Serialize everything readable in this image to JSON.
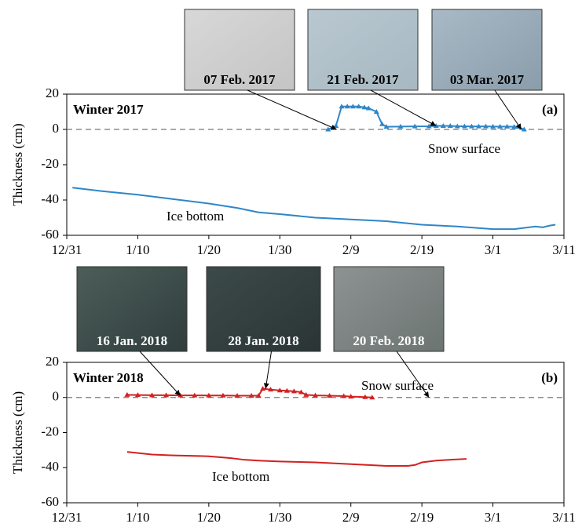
{
  "chart_data": [
    {
      "type": "line",
      "title": "Winter 2017",
      "panel_label": "(a)",
      "ylabel": "Thickness (cm)",
      "xlim": [
        0,
        70
      ],
      "xticks": [
        {
          "value": 0,
          "label": "12/31"
        },
        {
          "value": 10,
          "label": "1/10"
        },
        {
          "value": 20,
          "label": "1/20"
        },
        {
          "value": 30,
          "label": "1/30"
        },
        {
          "value": 40,
          "label": "2/9"
        },
        {
          "value": 50,
          "label": "2/19"
        },
        {
          "value": 60,
          "label": "3/1"
        },
        {
          "value": 70,
          "label": "3/11"
        }
      ],
      "ylim": [
        -60,
        20
      ],
      "yticks": [
        -60,
        -40,
        -20,
        0,
        20
      ],
      "hline": 0,
      "photos": [
        {
          "label": "07 Feb. 2017",
          "x": 38,
          "y": 0
        },
        {
          "label": "21 Feb. 2017",
          "x": 52,
          "y": 2
        },
        {
          "label": "03 Mar. 2017",
          "x": 64,
          "y": 0
        }
      ],
      "series": [
        {
          "name": "Snow surface",
          "color": "#2e86c8",
          "marker": "triangle",
          "x": [
            36.8,
            37.9,
            38.7,
            39.5,
            40.3,
            41.1,
            41.9,
            42.5,
            43.6,
            44.4,
            45,
            47,
            49,
            51,
            52,
            53,
            54,
            55,
            56,
            57,
            58,
            59,
            60,
            61,
            62,
            63,
            63.5,
            64.4
          ],
          "values": [
            0,
            2,
            13,
            13,
            13,
            13,
            12.5,
            12,
            10,
            3,
            1.5,
            1.6,
            1.7,
            1.8,
            2,
            2,
            2,
            1.8,
            1.8,
            1.7,
            1.7,
            1.7,
            1.6,
            1.6,
            1.6,
            1.5,
            1.5,
            0
          ]
        },
        {
          "name": "Ice bottom",
          "color": "#2e86c8",
          "marker": "none",
          "x": [
            0.8,
            5,
            10,
            15,
            20,
            24,
            27,
            30,
            35,
            40,
            45,
            50,
            55,
            60,
            63,
            65,
            66,
            67,
            68,
            68.8
          ],
          "values": [
            -33,
            -35,
            -37,
            -39.5,
            -42,
            -44.5,
            -47,
            -48,
            -50,
            -51,
            -52,
            -54,
            -55,
            -56.5,
            -56.5,
            -55.5,
            -55,
            -55.5,
            -54.5,
            -54
          ]
        }
      ]
    },
    {
      "type": "line",
      "title": "Winter 2018",
      "panel_label": "(b)",
      "ylabel": "Thickness (cm)",
      "xlim": [
        0,
        70
      ],
      "xticks": [
        {
          "value": 0,
          "label": "12/31"
        },
        {
          "value": 10,
          "label": "1/10"
        },
        {
          "value": 20,
          "label": "1/20"
        },
        {
          "value": 30,
          "label": "1/30"
        },
        {
          "value": 40,
          "label": "2/9"
        },
        {
          "value": 50,
          "label": "2/19"
        },
        {
          "value": 60,
          "label": "3/1"
        },
        {
          "value": 70,
          "label": "3/11"
        }
      ],
      "ylim": [
        -60,
        20
      ],
      "yticks": [
        -60,
        -40,
        -20,
        0,
        20
      ],
      "hline": 0,
      "photos": [
        {
          "label": "16 Jan. 2018",
          "x": 16,
          "y": 1
        },
        {
          "label": "28 Jan. 2018",
          "x": 28,
          "y": 5
        },
        {
          "label": "20 Feb. 2018",
          "x": 51,
          "y": 0
        }
      ],
      "series": [
        {
          "name": "Snow surface",
          "color": "#d42020",
          "marker": "triangle",
          "x": [
            8.5,
            10,
            12,
            14,
            16,
            18,
            20,
            22,
            24,
            26,
            27,
            27.6,
            28.7,
            30,
            31,
            32,
            33,
            33.7,
            35,
            37,
            39,
            40,
            42,
            43
          ],
          "values": [
            1.5,
            1.4,
            1.3,
            1.3,
            1.2,
            1.2,
            1.1,
            1.1,
            1,
            1,
            1,
            5,
            4.5,
            4,
            3.8,
            3.5,
            3,
            1.5,
            1.2,
            1,
            0.8,
            0.5,
            0.2,
            0
          ]
        },
        {
          "name": "Ice bottom",
          "color": "#d42020",
          "marker": "none",
          "x": [
            8.5,
            12,
            15,
            20,
            23,
            25,
            27,
            30,
            35,
            40,
            45,
            48,
            49,
            50,
            52,
            54,
            56.3
          ],
          "values": [
            -31,
            -32.5,
            -33,
            -33.5,
            -34.5,
            -35.5,
            -36,
            -36.5,
            -37,
            -38,
            -39,
            -39,
            -38.5,
            -37,
            -36,
            -35.5,
            -35
          ]
        }
      ]
    }
  ]
}
